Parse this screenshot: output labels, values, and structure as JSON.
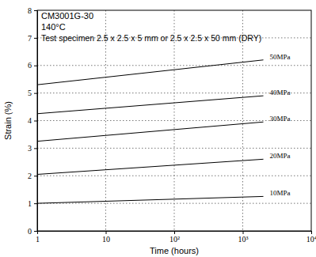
{
  "chart_data": {
    "type": "line",
    "title": "CM3001G-30",
    "subtitle": "140°C",
    "annotation": "Test specimen 2.5 x 2.5 x 5 mm or 2.5 x 2.5 x 50 mm (DRY)",
    "x_label": "Time (hours)",
    "y_label": "Strain (%)",
    "log": "x",
    "grid": true,
    "x": [
      1,
      2000
    ],
    "series": [
      {
        "name": "50MPa",
        "color": "#000000",
        "values": [
          5.3,
          6.2
        ]
      },
      {
        "name": "40MPa",
        "color": "#000000",
        "values": [
          4.25,
          4.9
        ]
      },
      {
        "name": "30MPa",
        "color": "#000000",
        "values": [
          3.25,
          3.95
        ]
      },
      {
        "name": "20MPa",
        "color": "#000000",
        "values": [
          2.05,
          2.6
        ]
      },
      {
        "name": "10MPa",
        "color": "#000000",
        "values": [
          1.0,
          1.25
        ]
      }
    ],
    "xlim": [
      1,
      10000
    ],
    "xticks": [
      1,
      10,
      {
        "value": 100,
        "label": "10²"
      },
      {
        "value": 1000,
        "label": "10³"
      },
      {
        "value": 10000,
        "label": "10⁴"
      }
    ],
    "ylim": [
      0,
      8
    ],
    "yticks": [
      0,
      1,
      2,
      3,
      4,
      5,
      6,
      7,
      8
    ]
  }
}
